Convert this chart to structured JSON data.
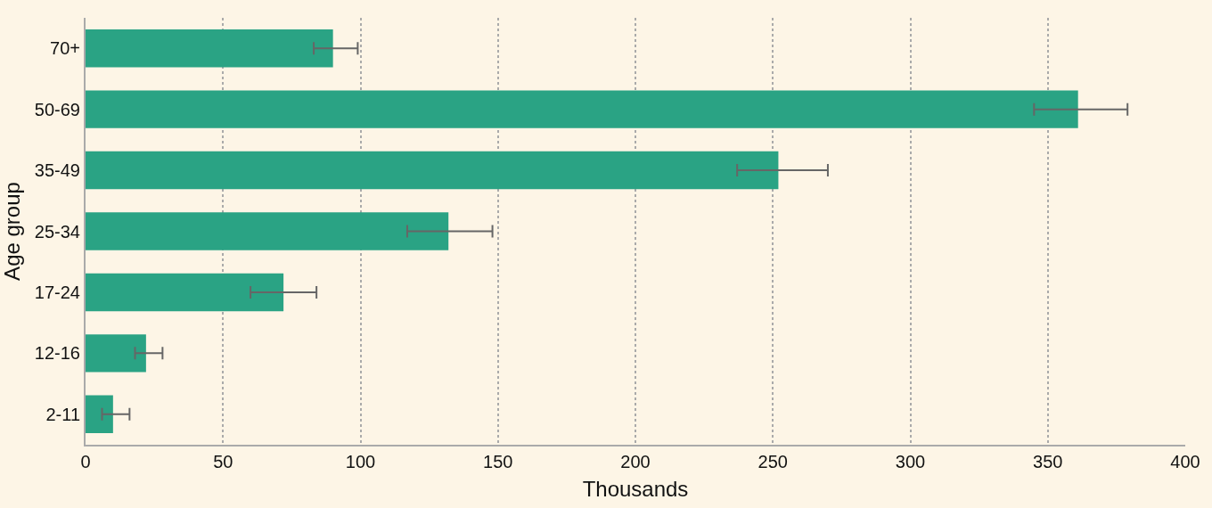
{
  "chart_data": {
    "type": "bar",
    "orientation": "horizontal",
    "ylabel": "Age group",
    "xlabel": "Thousands",
    "categories": [
      "70+",
      "50-69",
      "35-49",
      "25-34",
      "17-24",
      "12-16",
      "2-11"
    ],
    "values": [
      90,
      361,
      252,
      132,
      72,
      22,
      10
    ],
    "errors": [
      [
        83,
        99
      ],
      [
        345,
        379
      ],
      [
        237,
        270
      ],
      [
        117,
        148
      ],
      [
        60,
        84
      ],
      [
        18,
        28
      ],
      [
        6,
        16
      ]
    ],
    "color": "#2aa384",
    "xlim": [
      0,
      400
    ],
    "xticks": [
      0,
      50,
      100,
      150,
      200,
      250,
      300,
      350,
      400
    ],
    "grid": "x"
  }
}
